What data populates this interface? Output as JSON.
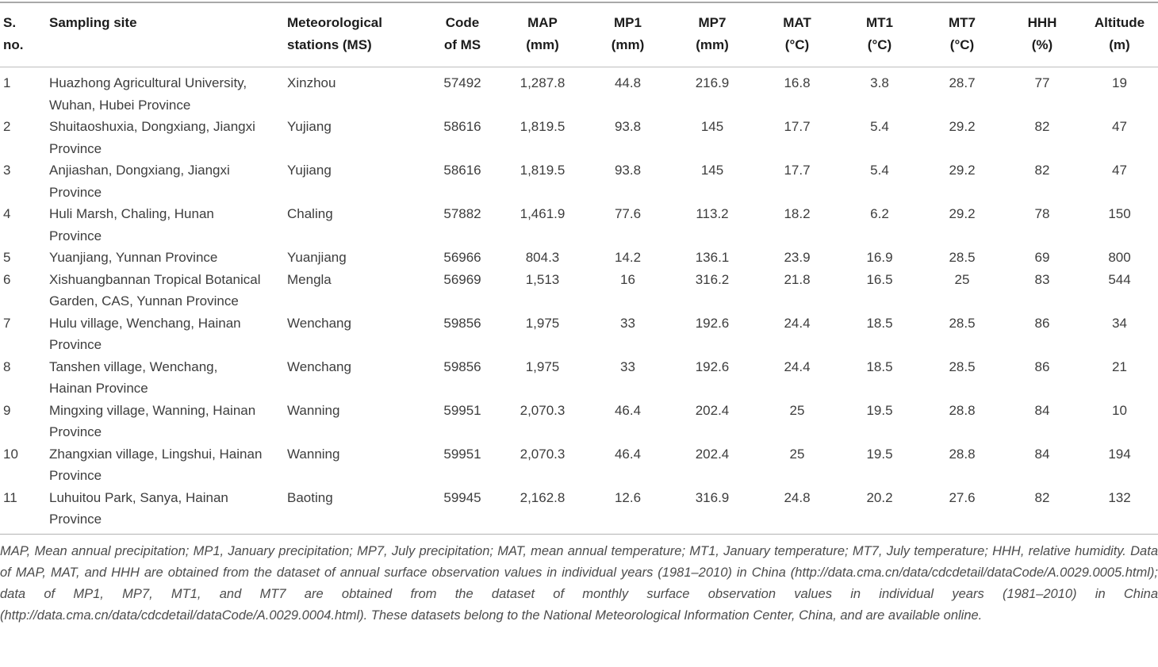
{
  "table": {
    "column_keys": [
      "no",
      "site",
      "station",
      "code",
      "map",
      "mp1",
      "mp7",
      "mat",
      "mt1",
      "mt7",
      "hhh",
      "altitude"
    ],
    "columns": [
      {
        "line1": "S.",
        "line2": "no."
      },
      {
        "line1": "Sampling site",
        "line2": ""
      },
      {
        "line1": "Meteorological",
        "line2": "stations (MS)"
      },
      {
        "line1": "Code",
        "line2": "of MS"
      },
      {
        "line1": "MAP",
        "line2": "(mm)"
      },
      {
        "line1": "MP1",
        "line2": "(mm)"
      },
      {
        "line1": "MP7",
        "line2": "(mm)"
      },
      {
        "line1": "MAT",
        "line2": "(°C)"
      },
      {
        "line1": "MT1",
        "line2": "(°C)"
      },
      {
        "line1": "MT7",
        "line2": "(°C)"
      },
      {
        "line1": "HHH",
        "line2": "(%)"
      },
      {
        "line1": "Altitude",
        "line2": "(m)"
      }
    ],
    "rows": [
      {
        "no": "1",
        "site": "Huazhong Agricultural University, Wuhan, Hubei Province",
        "station": "Xinzhou",
        "code": "57492",
        "map": "1,287.8",
        "mp1": "44.8",
        "mp7": "216.9",
        "mat": "16.8",
        "mt1": "3.8",
        "mt7": "28.7",
        "hhh": "77",
        "altitude": "19"
      },
      {
        "no": "2",
        "site": "Shuitaoshuxia, Dongxiang, Jiangxi Province",
        "station": "Yujiang",
        "code": "58616",
        "map": "1,819.5",
        "mp1": "93.8",
        "mp7": "145",
        "mat": "17.7",
        "mt1": "5.4",
        "mt7": "29.2",
        "hhh": "82",
        "altitude": "47"
      },
      {
        "no": "3",
        "site": "Anjiashan, Dongxiang, Jiangxi Province",
        "station": "Yujiang",
        "code": "58616",
        "map": "1,819.5",
        "mp1": "93.8",
        "mp7": "145",
        "mat": "17.7",
        "mt1": "5.4",
        "mt7": "29.2",
        "hhh": "82",
        "altitude": "47"
      },
      {
        "no": "4",
        "site": "Huli Marsh, Chaling, Hunan Province",
        "station": "Chaling",
        "code": "57882",
        "map": "1,461.9",
        "mp1": "77.6",
        "mp7": "113.2",
        "mat": "18.2",
        "mt1": "6.2",
        "mt7": "29.2",
        "hhh": "78",
        "altitude": "150"
      },
      {
        "no": "5",
        "site": "Yuanjiang, Yunnan Province",
        "station": "Yuanjiang",
        "code": "56966",
        "map": "804.3",
        "mp1": "14.2",
        "mp7": "136.1",
        "mat": "23.9",
        "mt1": "16.9",
        "mt7": "28.5",
        "hhh": "69",
        "altitude": "800"
      },
      {
        "no": "6",
        "site": "Xishuangbannan Tropical Botanical Garden, CAS, Yunnan Province",
        "station": "Mengla",
        "code": "56969",
        "map": "1,513",
        "mp1": "16",
        "mp7": "316.2",
        "mat": "21.8",
        "mt1": "16.5",
        "mt7": "25",
        "hhh": "83",
        "altitude": "544"
      },
      {
        "no": "7",
        "site": "Hulu village, Wenchang, Hainan Province",
        "station": "Wenchang",
        "code": "59856",
        "map": "1,975",
        "mp1": "33",
        "mp7": "192.6",
        "mat": "24.4",
        "mt1": "18.5",
        "mt7": "28.5",
        "hhh": "86",
        "altitude": "34"
      },
      {
        "no": "8",
        "site": "Tanshen village, Wenchang, Hainan Province",
        "station": "Wenchang",
        "code": "59856",
        "map": "1,975",
        "mp1": "33",
        "mp7": "192.6",
        "mat": "24.4",
        "mt1": "18.5",
        "mt7": "28.5",
        "hhh": "86",
        "altitude": "21"
      },
      {
        "no": "9",
        "site": "Mingxing village, Wanning, Hainan Province",
        "station": "Wanning",
        "code": "59951",
        "map": "2,070.3",
        "mp1": "46.4",
        "mp7": "202.4",
        "mat": "25",
        "mt1": "19.5",
        "mt7": "28.8",
        "hhh": "84",
        "altitude": "10"
      },
      {
        "no": "10",
        "site": "Zhangxian village, Lingshui, Hainan Province",
        "station": "Wanning",
        "code": "59951",
        "map": "2,070.3",
        "mp1": "46.4",
        "mp7": "202.4",
        "mat": "25",
        "mt1": "19.5",
        "mt7": "28.8",
        "hhh": "84",
        "altitude": "194"
      },
      {
        "no": "11",
        "site": "Luhuitou Park, Sanya, Hainan Province",
        "station": "Baoting",
        "code": "59945",
        "map": "2,162.8",
        "mp1": "12.6",
        "mp7": "316.9",
        "mat": "24.8",
        "mt1": "20.2",
        "mt7": "27.6",
        "hhh": "82",
        "altitude": "132"
      }
    ],
    "footnote": "MAP, Mean annual precipitation; MP1, January precipitation; MP7, July precipitation; MAT, mean annual temperature; MT1, January temperature; MT7, July temperature; HHH, relative humidity. Data of MAP, MAT, and HHH are obtained from the dataset of annual surface observation values in individual years (1981–2010) in China (http://data.cma.cn/data/cdcdetail/dataCode/A.0029.0005.html); data of MP1, MP7, MT1, and MT7 are obtained from the dataset of monthly surface observation values in individual years (1981–2010) in China (http://data.cma.cn/data/cdcdetail/dataCode/A.0029.0004.html). These datasets belong to the National Meteorological Information Center, China, and are available online."
  }
}
